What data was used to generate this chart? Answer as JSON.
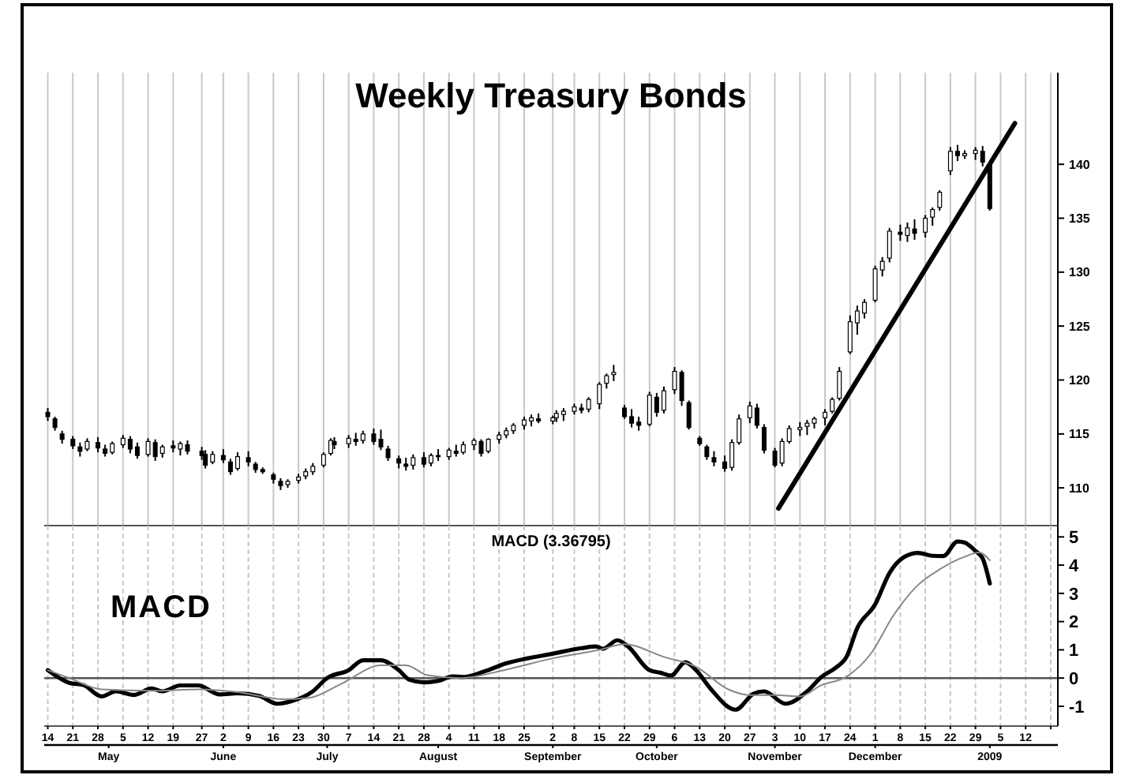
{
  "chart_data": [
    {
      "type": "candlestick",
      "title": "Weekly Treasury Bonds",
      "xlim": [
        "2008-04-13",
        "2009-01-21"
      ],
      "xticks": [
        "2008-04-14",
        "2008-04-21",
        "2008-04-28",
        "2008-05-05",
        "2008-05-12",
        "2008-05-19",
        "2008-05-27",
        "2008-06-02",
        "2008-06-09",
        "2008-06-16",
        "2008-06-23",
        "2008-06-30",
        "2008-07-07",
        "2008-07-14",
        "2008-07-21",
        "2008-07-28",
        "2008-08-04",
        "2008-08-11",
        "2008-08-18",
        "2008-08-25",
        "2008-09-02",
        "2008-09-08",
        "2008-09-15",
        "2008-09-22",
        "2008-09-29",
        "2008-10-06",
        "2008-10-13",
        "2008-10-20",
        "2008-10-27",
        "2008-11-03",
        "2008-11-10",
        "2008-11-17",
        "2008-11-24",
        "2008-12-01",
        "2008-12-08",
        "2008-12-15",
        "2008-12-22",
        "2008-12-29",
        "2009-01-05",
        "2009-01-12",
        "2009-01-19"
      ],
      "ylim": [
        106.5,
        148.5
      ],
      "yticks": [
        110,
        115,
        120,
        125,
        130,
        135,
        140
      ],
      "grid": "x",
      "tick_labels": "y",
      "series": [
        {
          "type": "candlestick",
          "color": "#000000",
          "x": [
            "2008-04-14",
            "2008-04-16",
            "2008-04-18",
            "2008-04-21",
            "2008-04-23",
            "2008-04-25",
            "2008-04-28",
            "2008-04-30",
            "2008-05-02",
            "2008-05-05",
            "2008-05-07",
            "2008-05-09",
            "2008-05-12",
            "2008-05-14",
            "2008-05-16",
            "2008-05-19",
            "2008-05-21",
            "2008-05-23",
            "2008-05-27",
            "2008-05-28",
            "2008-05-30",
            "2008-06-02",
            "2008-06-04",
            "2008-06-06",
            "2008-06-09",
            "2008-06-11",
            "2008-06-13",
            "2008-06-16",
            "2008-06-18",
            "2008-06-20",
            "2008-06-23",
            "2008-06-25",
            "2008-06-27",
            "2008-06-30",
            "2008-07-02",
            "2008-07-03",
            "2008-07-07",
            "2008-07-09",
            "2008-07-11",
            "2008-07-14",
            "2008-07-16",
            "2008-07-18",
            "2008-07-21",
            "2008-07-23",
            "2008-07-25",
            "2008-07-28",
            "2008-07-30",
            "2008-08-01",
            "2008-08-04",
            "2008-08-06",
            "2008-08-08",
            "2008-08-11",
            "2008-08-13",
            "2008-08-15",
            "2008-08-18",
            "2008-08-20",
            "2008-08-22",
            "2008-08-25",
            "2008-08-27",
            "2008-08-29",
            "2008-09-02",
            "2008-09-03",
            "2008-09-05",
            "2008-09-08",
            "2008-09-10",
            "2008-09-12",
            "2008-09-15",
            "2008-09-17",
            "2008-09-19",
            "2008-09-22",
            "2008-09-24",
            "2008-09-26",
            "2008-09-29",
            "2008-10-01",
            "2008-10-03",
            "2008-10-06",
            "2008-10-08",
            "2008-10-10",
            "2008-10-13",
            "2008-10-15",
            "2008-10-17",
            "2008-10-20",
            "2008-10-22",
            "2008-10-24",
            "2008-10-27",
            "2008-10-29",
            "2008-10-31",
            "2008-11-03",
            "2008-11-05",
            "2008-11-07",
            "2008-11-10",
            "2008-11-12",
            "2008-11-14",
            "2008-11-17",
            "2008-11-19",
            "2008-11-21",
            "2008-11-24",
            "2008-11-26",
            "2008-11-28",
            "2008-12-01",
            "2008-12-03",
            "2008-12-05",
            "2008-12-08",
            "2008-12-10",
            "2008-12-12",
            "2008-12-15",
            "2008-12-17",
            "2008-12-19",
            "2008-12-22",
            "2008-12-24",
            "2008-12-26",
            "2008-12-29",
            "2008-12-31",
            "2009-01-02"
          ],
          "ohlc": [
            [
              117.0,
              117.4,
              116.2,
              116.6
            ],
            [
              116.4,
              116.6,
              115.3,
              115.6
            ],
            [
              115.0,
              115.3,
              114.1,
              114.5
            ],
            [
              114.5,
              114.8,
              113.6,
              113.9
            ],
            [
              113.8,
              114.2,
              112.9,
              113.4
            ],
            [
              113.6,
              114.6,
              113.4,
              114.3
            ],
            [
              114.2,
              114.7,
              113.3,
              113.7
            ],
            [
              113.6,
              114.0,
              112.9,
              113.2
            ],
            [
              113.3,
              114.3,
              113.1,
              114.1
            ],
            [
              114.0,
              114.9,
              113.7,
              114.6
            ],
            [
              114.5,
              114.8,
              113.2,
              113.6
            ],
            [
              113.8,
              114.2,
              112.7,
              113.0
            ],
            [
              113.1,
              114.6,
              112.9,
              114.3
            ],
            [
              114.2,
              114.5,
              112.5,
              112.9
            ],
            [
              113.2,
              114.0,
              112.8,
              113.8
            ],
            [
              113.9,
              114.4,
              113.3,
              113.7
            ],
            [
              113.6,
              114.3,
              113.0,
              114.1
            ],
            [
              114.0,
              114.4,
              113.1,
              113.4
            ],
            [
              113.4,
              113.8,
              112.6,
              113.0
            ],
            [
              113.1,
              113.5,
              111.8,
              112.1
            ],
            [
              112.4,
              113.4,
              112.2,
              113.1
            ],
            [
              113.0,
              113.6,
              112.3,
              112.6
            ],
            [
              112.4,
              112.7,
              111.2,
              111.5
            ],
            [
              111.8,
              113.3,
              111.6,
              112.9
            ],
            [
              112.8,
              113.4,
              112.0,
              112.4
            ],
            [
              112.2,
              112.4,
              111.4,
              111.7
            ],
            [
              111.7,
              111.9,
              111.3,
              111.5
            ],
            [
              111.2,
              111.4,
              110.4,
              110.8
            ],
            [
              110.6,
              110.9,
              109.8,
              110.2
            ],
            [
              110.3,
              110.8,
              110.0,
              110.6
            ],
            [
              110.7,
              111.3,
              110.4,
              111.0
            ],
            [
              111.1,
              111.8,
              110.8,
              111.5
            ],
            [
              111.5,
              112.3,
              111.2,
              112.0
            ],
            [
              112.1,
              113.3,
              111.9,
              113.1
            ],
            [
              113.2,
              114.6,
              113.0,
              114.4
            ],
            [
              114.3,
              114.7,
              113.6,
              114.0
            ],
            [
              114.1,
              114.9,
              113.7,
              114.6
            ],
            [
              114.5,
              115.1,
              113.9,
              114.3
            ],
            [
              114.4,
              115.3,
              114.1,
              115.0
            ],
            [
              115.0,
              115.5,
              114.0,
              114.3
            ],
            [
              114.5,
              115.4,
              113.5,
              113.8
            ],
            [
              113.6,
              113.9,
              112.5,
              112.8
            ],
            [
              112.7,
              113.0,
              111.8,
              112.3
            ],
            [
              112.2,
              112.8,
              111.6,
              112.0
            ],
            [
              112.1,
              113.1,
              111.7,
              112.8
            ],
            [
              112.8,
              113.3,
              111.9,
              112.2
            ],
            [
              112.3,
              113.2,
              112.0,
              113.0
            ],
            [
              113.0,
              113.6,
              112.5,
              112.9
            ],
            [
              112.9,
              113.7,
              112.6,
              113.5
            ],
            [
              113.4,
              114.0,
              112.9,
              113.2
            ],
            [
              113.3,
              114.3,
              113.1,
              114.0
            ],
            [
              114.0,
              114.6,
              113.5,
              114.4
            ],
            [
              114.3,
              114.5,
              112.9,
              113.2
            ],
            [
              113.4,
              114.6,
              113.2,
              114.5
            ],
            [
              114.5,
              115.2,
              114.1,
              114.9
            ],
            [
              114.9,
              115.6,
              114.6,
              115.3
            ],
            [
              115.3,
              116.0,
              115.0,
              115.8
            ],
            [
              115.8,
              116.6,
              115.4,
              116.3
            ],
            [
              116.2,
              116.8,
              115.7,
              116.5
            ],
            [
              116.4,
              116.9,
              116.0,
              116.2
            ],
            [
              116.2,
              116.7,
              115.9,
              116.5
            ],
            [
              116.5,
              117.2,
              116.1,
              116.9
            ],
            [
              116.8,
              117.4,
              116.2,
              117.1
            ],
            [
              117.1,
              117.8,
              116.8,
              117.5
            ],
            [
              117.4,
              117.8,
              116.9,
              117.2
            ],
            [
              117.3,
              118.4,
              117.0,
              118.2
            ],
            [
              117.8,
              119.8,
              117.3,
              119.6
            ],
            [
              119.7,
              120.6,
              119.2,
              120.4
            ],
            [
              120.5,
              121.4,
              119.9,
              120.7
            ],
            [
              117.4,
              117.7,
              116.4,
              116.6
            ],
            [
              116.6,
              117.3,
              115.6,
              116.0
            ],
            [
              116.1,
              116.6,
              115.3,
              115.8
            ],
            [
              115.9,
              118.9,
              115.7,
              118.6
            ],
            [
              118.4,
              118.8,
              116.6,
              117.0
            ],
            [
              117.2,
              119.4,
              116.9,
              119.0
            ],
            [
              119.1,
              121.2,
              118.7,
              120.8
            ],
            [
              120.7,
              120.9,
              117.6,
              118.1
            ],
            [
              117.9,
              118.1,
              115.4,
              115.6
            ],
            [
              114.6,
              114.8,
              113.9,
              114.1
            ],
            [
              113.8,
              114.0,
              112.6,
              112.9
            ],
            [
              112.8,
              113.4,
              112.0,
              112.4
            ],
            [
              112.4,
              113.0,
              111.5,
              111.8
            ],
            [
              111.9,
              114.5,
              111.6,
              114.2
            ],
            [
              114.2,
              116.8,
              114.0,
              116.4
            ],
            [
              116.5,
              118.0,
              116.0,
              117.6
            ],
            [
              117.4,
              117.8,
              115.5,
              115.8
            ],
            [
              115.6,
              115.9,
              113.2,
              113.5
            ],
            [
              113.4,
              113.7,
              111.9,
              112.1
            ],
            [
              112.3,
              114.6,
              112.0,
              114.3
            ],
            [
              114.3,
              115.8,
              114.1,
              115.5
            ],
            [
              115.4,
              116.1,
              114.8,
              115.6
            ],
            [
              115.7,
              116.3,
              114.9,
              116.0
            ],
            [
              116.0,
              116.6,
              115.5,
              116.4
            ],
            [
              116.5,
              117.3,
              115.8,
              117.0
            ],
            [
              117.1,
              118.4,
              116.9,
              118.2
            ],
            [
              118.3,
              121.2,
              118.1,
              120.8
            ],
            [
              122.6,
              126.0,
              122.4,
              125.4
            ],
            [
              125.3,
              126.9,
              124.2,
              126.4
            ],
            [
              126.2,
              127.5,
              125.7,
              127.2
            ],
            [
              127.4,
              130.6,
              127.2,
              130.3
            ],
            [
              130.2,
              131.4,
              129.6,
              131.0
            ],
            [
              131.3,
              134.1,
              130.9,
              133.8
            ],
            [
              133.7,
              134.4,
              132.9,
              133.5
            ],
            [
              133.4,
              134.6,
              132.8,
              134.1
            ],
            [
              134.0,
              134.9,
              133.0,
              133.6
            ],
            [
              133.7,
              135.3,
              133.2,
              135.0
            ],
            [
              135.1,
              136.0,
              134.3,
              135.8
            ],
            [
              136.0,
              137.6,
              135.7,
              137.4
            ],
            [
              139.4,
              141.6,
              139.0,
              141.2
            ],
            [
              141.2,
              141.8,
              140.3,
              140.8
            ],
            [
              140.8,
              141.3,
              140.5,
              141.0
            ],
            [
              141.0,
              141.6,
              140.4,
              141.3
            ],
            [
              141.2,
              141.7,
              139.8,
              140.2
            ],
            [
              139.9,
              140.0,
              135.7,
              135.9
            ]
          ]
        },
        {
          "type": "line",
          "color": "#000000",
          "x": [
            "2008-11-04",
            "2009-01-09"
          ],
          "values": [
            108.1,
            143.8
          ]
        }
      ]
    },
    {
      "type": "line",
      "title": "MACD (3.36795)",
      "annotations": [
        "MACD"
      ],
      "xlim": [
        "2008-04-13",
        "2009-01-21"
      ],
      "xticks": [
        {
          "value": "2008-04-14",
          "label": "14"
        },
        {
          "value": "2008-04-21",
          "label": "21"
        },
        {
          "value": "2008-04-28",
          "label": "28"
        },
        {
          "value": "2008-05-05",
          "label": "5"
        },
        {
          "value": "2008-05-12",
          "label": "12"
        },
        {
          "value": "2008-05-19",
          "label": "19"
        },
        {
          "value": "2008-05-27",
          "label": "27"
        },
        {
          "value": "2008-06-02",
          "label": "2"
        },
        {
          "value": "2008-06-09",
          "label": "9"
        },
        {
          "value": "2008-06-16",
          "label": "16"
        },
        {
          "value": "2008-06-23",
          "label": "23"
        },
        {
          "value": "2008-06-30",
          "label": "30"
        },
        {
          "value": "2008-07-07",
          "label": "7"
        },
        {
          "value": "2008-07-14",
          "label": "14"
        },
        {
          "value": "2008-07-21",
          "label": "21"
        },
        {
          "value": "2008-07-28",
          "label": "28"
        },
        {
          "value": "2008-08-04",
          "label": "4"
        },
        {
          "value": "2008-08-11",
          "label": "11"
        },
        {
          "value": "2008-08-18",
          "label": "18"
        },
        {
          "value": "2008-08-25",
          "label": "25"
        },
        {
          "value": "2008-09-02",
          "label": "2"
        },
        {
          "value": "2008-09-08",
          "label": "8"
        },
        {
          "value": "2008-09-15",
          "label": "15"
        },
        {
          "value": "2008-09-22",
          "label": "22"
        },
        {
          "value": "2008-09-29",
          "label": "29"
        },
        {
          "value": "2008-10-06",
          "label": "6"
        },
        {
          "value": "2008-10-13",
          "label": "13"
        },
        {
          "value": "2008-10-20",
          "label": "20"
        },
        {
          "value": "2008-10-27",
          "label": "27"
        },
        {
          "value": "2008-11-03",
          "label": "3"
        },
        {
          "value": "2008-11-10",
          "label": "10"
        },
        {
          "value": "2008-11-17",
          "label": "17"
        },
        {
          "value": "2008-11-24",
          "label": "24"
        },
        {
          "value": "2008-12-01",
          "label": "1"
        },
        {
          "value": "2008-12-08",
          "label": "8"
        },
        {
          "value": "2008-12-15",
          "label": "15"
        },
        {
          "value": "2008-12-22",
          "label": "22"
        },
        {
          "value": "2008-12-29",
          "label": "29"
        },
        {
          "value": "2009-01-05",
          "label": "5"
        },
        {
          "value": "2009-01-12",
          "label": "12"
        },
        {
          "value": "2009-01-19",
          "label": null
        }
      ],
      "x2lim": [
        "2008-04-13",
        "2009-01-21"
      ],
      "x2ticks": [
        {
          "value": "2008-05-01",
          "label": "May"
        },
        {
          "value": "2008-06-02",
          "label": "June"
        },
        {
          "value": "2008-07-01",
          "label": "July"
        },
        {
          "value": "2008-08-01",
          "label": "August"
        },
        {
          "value": "2008-09-02",
          "label": "September"
        },
        {
          "value": "2008-10-01",
          "label": "October"
        },
        {
          "value": "2008-11-03",
          "label": "November"
        },
        {
          "value": "2008-12-01",
          "label": "December"
        },
        {
          "value": "2009-01-02",
          "label": "2009"
        }
      ],
      "ylim": [
        -1.7,
        5.4
      ],
      "yticks": [
        -1,
        0,
        1,
        2,
        3,
        4,
        5
      ],
      "grid": "x",
      "ref_lines": [
        {
          "axis": "y",
          "value": 0,
          "color": "#555555"
        }
      ],
      "series": [
        {
          "color": "#000000",
          "x": [
            "2008-04-14",
            "2008-04-20",
            "2008-04-24",
            "2008-04-29",
            "2008-05-03",
            "2008-05-08",
            "2008-05-13",
            "2008-05-16",
            "2008-05-21",
            "2008-05-26",
            "2008-06-01",
            "2008-06-06",
            "2008-06-12",
            "2008-06-17",
            "2008-06-21",
            "2008-06-27",
            "2008-07-01",
            "2008-07-07",
            "2008-07-11",
            "2008-07-16",
            "2008-07-21",
            "2008-07-24",
            "2008-07-28",
            "2008-08-01",
            "2008-08-05",
            "2008-08-08",
            "2008-08-14",
            "2008-08-20",
            "2008-08-26",
            "2008-09-01",
            "2008-09-10",
            "2008-09-14",
            "2008-09-16",
            "2008-09-20",
            "2008-09-23",
            "2008-09-29",
            "2008-10-02",
            "2008-10-05",
            "2008-10-09",
            "2008-10-12",
            "2008-10-16",
            "2008-10-23",
            "2008-10-28",
            "2008-10-31",
            "2008-11-06",
            "2008-11-12",
            "2008-11-16",
            "2008-11-20",
            "2008-11-23",
            "2008-11-26",
            "2008-12-01",
            "2008-12-05",
            "2008-12-09",
            "2008-12-13",
            "2008-12-17",
            "2008-12-20",
            "2008-12-24",
            "2008-12-26",
            "2008-12-29",
            "2008-12-31",
            "2009-01-02"
          ],
          "values": [
            0.28,
            -0.17,
            -0.25,
            -0.65,
            -0.47,
            -0.6,
            -0.37,
            -0.47,
            -0.26,
            -0.26,
            -0.58,
            -0.54,
            -0.63,
            -0.91,
            -0.82,
            -0.47,
            0,
            0.28,
            0.63,
            0.63,
            0.28,
            -0.06,
            -0.15,
            -0.1,
            0.06,
            0.04,
            0.24,
            0.52,
            0.7,
            0.84,
            1.06,
            1.12,
            1.04,
            1.34,
            1.12,
            0.28,
            0.19,
            0.09,
            0.56,
            0.28,
            -0.37,
            -1.12,
            -0.56,
            -0.47,
            -0.91,
            -0.47,
            0.04,
            0.37,
            0.75,
            1.77,
            2.61,
            3.72,
            4.28,
            4.43,
            4.33,
            4.32,
            4.84,
            4.8,
            4.5,
            4.24,
            3.35
          ]
        },
        {
          "color": "#888888",
          "x": [
            "2008-04-14",
            "2008-04-20",
            "2008-04-29",
            "2008-05-13",
            "2008-05-26",
            "2008-06-06",
            "2008-06-19",
            "2008-06-26",
            "2008-07-05",
            "2008-07-16",
            "2008-07-23",
            "2008-07-29",
            "2008-08-07",
            "2008-08-20",
            "2008-09-02",
            "2008-09-15",
            "2008-09-22",
            "2008-10-03",
            "2008-10-12",
            "2008-10-21",
            "2008-10-27",
            "2008-11-03",
            "2008-11-10",
            "2008-11-16",
            "2008-11-23",
            "2008-11-30",
            "2008-12-06",
            "2008-12-13",
            "2008-12-19",
            "2008-12-26",
            "2008-12-30",
            "2009-01-02"
          ],
          "values": [
            0.28,
            0.0,
            -0.4,
            -0.45,
            -0.4,
            -0.5,
            -0.75,
            -0.7,
            -0.2,
            0.45,
            0.45,
            0.1,
            0.0,
            0.3,
            0.7,
            1.0,
            1.2,
            0.75,
            0.4,
            -0.4,
            -0.6,
            -0.6,
            -0.65,
            -0.25,
            0.05,
            0.9,
            2.2,
            3.3,
            3.85,
            4.3,
            4.45,
            4.17
          ]
        }
      ]
    }
  ]
}
